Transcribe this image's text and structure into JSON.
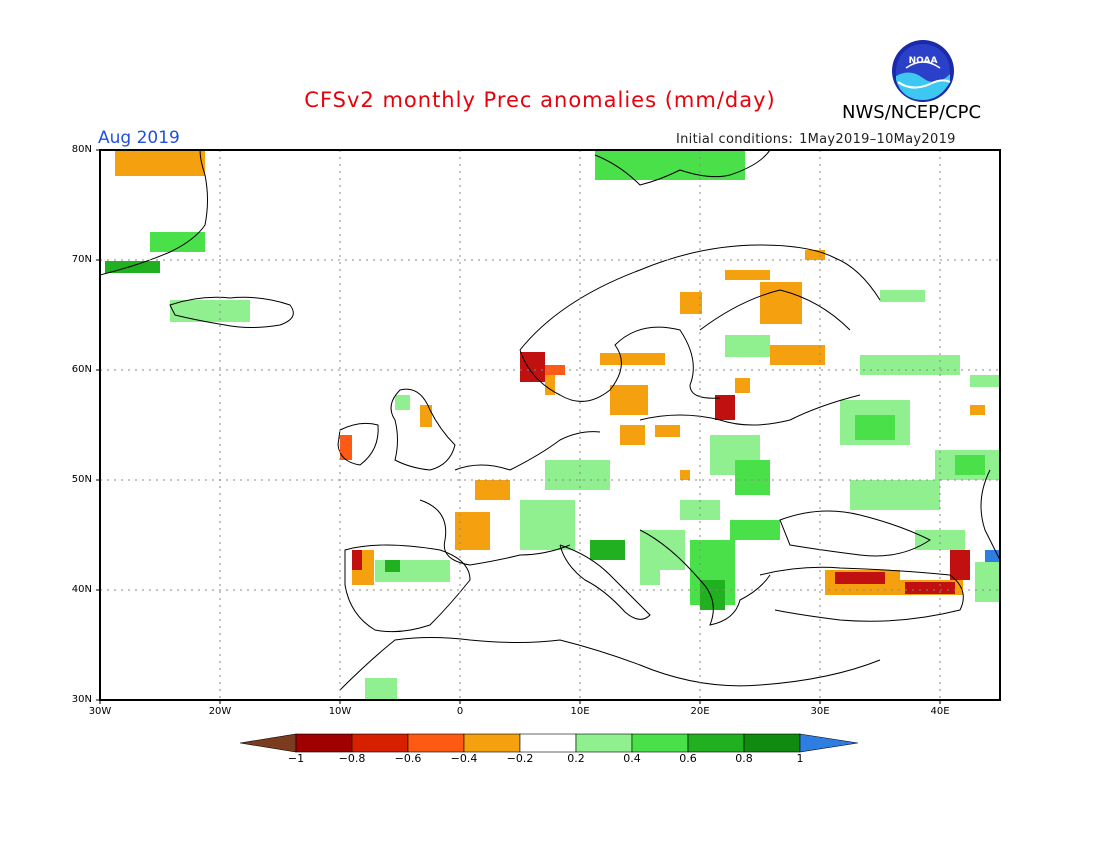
{
  "header": {
    "title": "CFSv2 monthly Prec anomalies (mm/day)",
    "org": "NWS/NCEP/CPC",
    "logo_text": "NOAA",
    "month": "Aug 2019",
    "initial_label": "Initial conditions:",
    "initial_range": "1May2019–10May2019"
  },
  "map": {
    "lat_labels": [
      "80N",
      "70N",
      "60N",
      "50N",
      "40N",
      "30N"
    ],
    "lon_labels": [
      "30W",
      "20W",
      "10W",
      "0",
      "10E",
      "20E",
      "30E",
      "40E"
    ],
    "lat_range": [
      30,
      80
    ],
    "lon_range": [
      -30,
      45
    ],
    "grid": true
  },
  "colorbar": {
    "labels": [
      "−1",
      "−0.8",
      "−0.6",
      "−0.4",
      "−0.2",
      "0.2",
      "0.4",
      "0.6",
      "0.8",
      "1"
    ],
    "colors": [
      "#7a3b1e",
      "#a10000",
      "#d62000",
      "#ff5a14",
      "#f5a00e",
      "#ffffff",
      "#90f090",
      "#4ae04a",
      "#20b020",
      "#118a11",
      "#2e7de0"
    ]
  },
  "colors": {
    "title": "#e8000b",
    "month": "#2050e0",
    "pos_light": "#90f090",
    "pos_mid": "#4ae04a",
    "pos_dark": "#20b020",
    "neg_orange": "#f5a00e",
    "neg_red": "#ff5a14",
    "neg_dark": "#c01010"
  }
}
